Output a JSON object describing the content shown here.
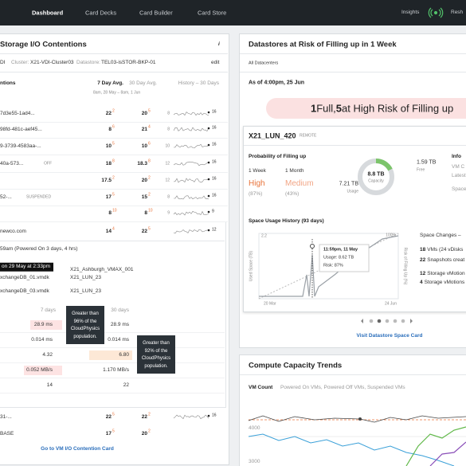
{
  "nav": {
    "items": [
      "Dashboard",
      "Card Decks",
      "Card Builder",
      "Card Store"
    ],
    "insights": "Insights",
    "user": "Resh"
  },
  "io_card": {
    "title": "Storage I/O Contentions",
    "info": "i",
    "breadcrumb": {
      "root": "DI",
      "cluster_label": "Cluster:",
      "cluster": "X21-VDI-Cluster03",
      "datastore_label": "Datastore:",
      "datastore": "TEL03-isSTOR-BKP-01"
    },
    "edit": "edit",
    "columns": {
      "name": "ntions",
      "avg7": "7 Day Avg.",
      "avg30": "30 Day Avg.",
      "history": "History – 30 Days",
      "range": "8am, 28 May – 8am, 1 Jun"
    },
    "rows": [
      {
        "name": "7d3e55-1ad4...",
        "avg7": "22",
        "d7": "2",
        "avg30": "20",
        "d30": "5",
        "spark_start": "8",
        "spark_end": "16"
      },
      {
        "name": "98fd-481c-aef45...",
        "avg7": "8",
        "d7": "6",
        "avg30": "21",
        "d30": "4",
        "spark_start": "8",
        "spark_end": "16"
      },
      {
        "name": "9-3739-4583aa-...",
        "avg7": "10",
        "d7": "5",
        "avg30": "10",
        "d30": "6",
        "spark_start": "10",
        "spark_end": "16"
      },
      {
        "name": "40a-573...",
        "status": "OFF",
        "avg7": "18",
        "d7": "8",
        "avg30": "18.3",
        "d30": "8",
        "spark_start": "12",
        "spark_end": "16"
      },
      {
        "avg7": "17.5",
        "d7": "2",
        "avg30": "20",
        "d30": "2",
        "spark_start": "12",
        "spark_end": "16"
      },
      {
        "name": "52-...",
        "status": "SUSPENDED",
        "avg7": "17",
        "d7": "5",
        "avg30": "15",
        "d30": "2",
        "spark_start": "8",
        "spark_end": "16"
      },
      {
        "avg7": "8",
        "d7": "10",
        "avg30": "8",
        "d30": "10",
        "spark_start": "9",
        "spark_end": "9"
      }
    ],
    "expanded": {
      "name": "newco.com",
      "avg7": "14",
      "d7": "4",
      "avg30": "22",
      "d30": "5",
      "spark_end": "12",
      "powered": "59am (Powered On 3 days, 4 hrs)",
      "tooltip": "on 29 May at 2:33pm",
      "disks": [
        {
          "store": "X21_Ashburgh_VMAX_001"
        },
        {
          "disk": "xchangeDB_01.vmdk",
          "store": "X21_LUN_23"
        },
        {
          "disk": "xchangeDB_03.vmdk",
          "store": "X21_LUN_23"
        }
      ],
      "metric_header": [
        "7 days",
        "30 days"
      ],
      "metrics": [
        [
          "28.9 ms",
          "28.9 ms"
        ],
        [
          "0.014 ms",
          "0.014 ms"
        ],
        [
          "4.32",
          "6.80"
        ],
        [
          "0.052 MB/s",
          "1.170 MB/s"
        ],
        [
          "14",
          "22"
        ]
      ],
      "popups": [
        [
          "Greater than",
          "96% of the",
          "CloudPhysics",
          "population."
        ],
        [
          "Greater than",
          "92% of the",
          "CloudPhysics",
          "population."
        ]
      ]
    },
    "rows_after": [
      {
        "name": "31-...",
        "avg7": "22",
        "d7": "5",
        "avg30": "22",
        "d30": "2",
        "spark_end": "16"
      },
      {
        "name": "BASE",
        "avg7": "17",
        "d7": "5",
        "avg30": "20",
        "d30": "2"
      }
    ],
    "link": "Go to VM I/O Contention Card"
  },
  "risk_card": {
    "title": "Datastores at Risk of Filling up in 1 Week",
    "scope": "All Datacenters",
    "as_of": "As of 4:00pm, 25 Jun",
    "banner": [
      "1",
      " Full, ",
      "5",
      " at High Risk of Filling up"
    ],
    "datastore": {
      "name": "X21_LUN_420",
      "tag": "REMOTE",
      "prob_title": "Probability of Filling up",
      "periods": [
        "1 Week",
        "1 Month"
      ],
      "levels": [
        "High",
        "Medium"
      ],
      "percents": [
        "(87%)",
        "(43%)"
      ],
      "capacity": "8.8 TB",
      "capacity_label": "Capacity",
      "free": "1.59 TB",
      "free_label": "Free",
      "usage": "7.21 TB",
      "usage_label": "Usage",
      "info": [
        "Info",
        "VM C",
        "Latest",
        "Space"
      ],
      "history_title": "Space Usage History (93 days)",
      "y_label": "Used Space (TB)",
      "y2_label": "Risk of Filling Up (%)",
      "y_top": "2.2",
      "y2_top": "100%",
      "x_start": "20 Mar",
      "x_end": "24 Jun",
      "tooltip": [
        "11:59pm, 11 May",
        "Usage: 8.62 TB",
        "Risk: 87%"
      ],
      "changes_title": "Space Changes –",
      "changes": [
        {
          "count": "18",
          "text": "VMs (24 vDisks"
        },
        {
          "count": "22",
          "text": "Snapshots creat"
        },
        {
          "count": "12",
          "text": "Storage vMotion"
        },
        {
          "count": "4",
          "text": "Storage vMotions"
        }
      ]
    },
    "link": "Visit Datastore Space Card"
  },
  "trend_card": {
    "title": "Compute Capacity Trends",
    "metric": "VM Count",
    "legend": "Powered On VMs, Powered Off VMs, Suspended VMs",
    "yticks": [
      "4000",
      "3000"
    ]
  }
}
